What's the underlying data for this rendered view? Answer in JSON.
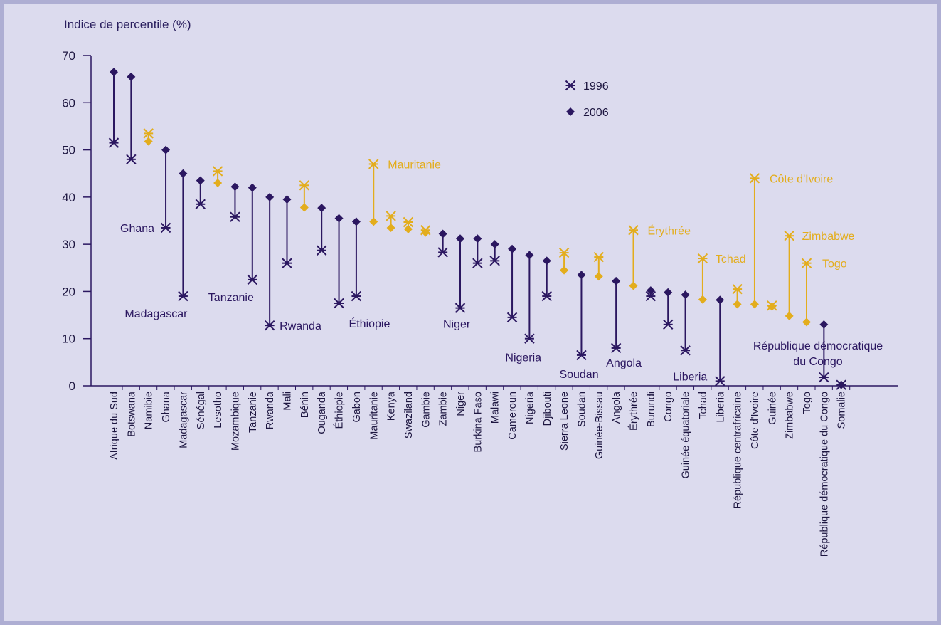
{
  "colors": {
    "background": "#dcdbee",
    "frame": "#aeaed3",
    "improved": "#2b1760",
    "declined": "#e3ad1d",
    "axis": "#2b1760"
  },
  "chart_data": {
    "type": "scatter",
    "title": "",
    "ylabel": "Indice de percentile (%)",
    "ylim": [
      0,
      70
    ],
    "yticks": [
      0,
      10,
      20,
      30,
      40,
      50,
      60,
      70
    ],
    "legend": {
      "placement": "top-center",
      "entries": [
        {
          "label": "1996",
          "marker": "asterisk"
        },
        {
          "label": "2006",
          "marker": "diamond"
        }
      ]
    },
    "categories": [
      "Afrique du Sud",
      "Botswana",
      "Namibie",
      "Ghana",
      "Madagascar",
      "Sénégal",
      "Lesotho",
      "Mozambique",
      "Tanzanie",
      "Rwanda",
      "Mali",
      "Bénin",
      "Ouganda",
      "Éthiopie",
      "Gabon",
      "Mauritanie",
      "Kenya",
      "Swaziland",
      "Gambie",
      "Zambie",
      "Niger",
      "Burkina Faso",
      "Malawi",
      "Cameroun",
      "Nigeria",
      "Djibouti",
      "Sierra Leone",
      "Soudan",
      "Guinée-Bissau",
      "Angola",
      "Érythrée",
      "Burundi",
      "Congo",
      "Guinée équatoriale",
      "Tchad",
      "Liberia",
      "République centrafricaine",
      "Côte d'Ivoire",
      "Guinée",
      "Zimbabwe",
      "Togo",
      "République démocratique du Congo",
      "Somalie"
    ],
    "series": [
      {
        "name": "1996",
        "values": [
          51.5,
          48,
          53.5,
          33.5,
          19,
          38.5,
          45.5,
          35.8,
          22.5,
          12.8,
          26,
          42.5,
          28.7,
          17.5,
          19,
          47,
          36,
          34.7,
          33,
          28.3,
          16.5,
          26,
          26.5,
          14.5,
          10,
          19,
          28.2,
          6.5,
          27.3,
          8,
          33,
          19,
          13,
          7.5,
          27,
          1,
          20.5,
          44,
          17,
          31.8,
          26,
          1.8,
          0.2
        ]
      },
      {
        "name": "2006",
        "values": [
          66.5,
          65.5,
          51.8,
          50,
          45,
          43.5,
          43,
          42.2,
          42,
          40,
          39.5,
          37.8,
          37.7,
          35.5,
          34.8,
          34.8,
          33.5,
          33.2,
          32.5,
          32.2,
          31.2,
          31.2,
          30,
          29,
          27.7,
          26.5,
          24.5,
          23.5,
          23.2,
          22.2,
          21.2,
          20.2,
          19.8,
          19.3,
          18.3,
          18.2,
          17.3,
          17.3,
          16.8,
          14.8,
          13.5,
          13,
          0.2
        ]
      }
    ],
    "annotations": [
      {
        "country": "Ghana",
        "text": "Ghana",
        "value_y": 33.5,
        "color": "improved"
      },
      {
        "country": "Madagascar",
        "text": "Madagascar",
        "value_y": 19,
        "color": "improved"
      },
      {
        "country": "Tanzanie",
        "text": "Tanzanie",
        "value_y": 22.5,
        "color": "improved"
      },
      {
        "country": "Rwanda",
        "text": "Rwanda",
        "value_y": 12.8,
        "color": "improved"
      },
      {
        "country": "Éthiopie",
        "text": "Éthiopie",
        "value_y": 17.5,
        "color": "improved"
      },
      {
        "country": "Mauritanie",
        "text": "Mauritanie",
        "value_y": 47,
        "color": "declined"
      },
      {
        "country": "Niger",
        "text": "Niger",
        "value_y": 16.5,
        "color": "improved"
      },
      {
        "country": "Nigeria",
        "text": "Nigeria",
        "value_y": 10,
        "color": "improved"
      },
      {
        "country": "Soudan",
        "text": "Soudan",
        "value_y": 6.5,
        "color": "improved"
      },
      {
        "country": "Angola",
        "text": "Angola",
        "value_y": 8,
        "color": "improved"
      },
      {
        "country": "Érythrée",
        "text": "Érythrée",
        "value_y": 33,
        "color": "declined"
      },
      {
        "country": "Tchad",
        "text": "Tchad",
        "value_y": 27,
        "color": "declined"
      },
      {
        "country": "Liberia",
        "text": "Liberia",
        "value_y": 1,
        "color": "improved"
      },
      {
        "country": "Côte d'Ivoire",
        "text": "Côte d'Ivoire",
        "value_y": 44,
        "color": "declined"
      },
      {
        "country": "Zimbabwe",
        "text": "Zimbabwe",
        "value_y": 31.8,
        "color": "declined"
      },
      {
        "country": "Togo",
        "text": "Togo",
        "value_y": 26,
        "color": "declined"
      },
      {
        "country": "République démocratique du Congo",
        "text": "République démocratique du Congo",
        "value_y": 13,
        "color": "improved"
      }
    ]
  }
}
